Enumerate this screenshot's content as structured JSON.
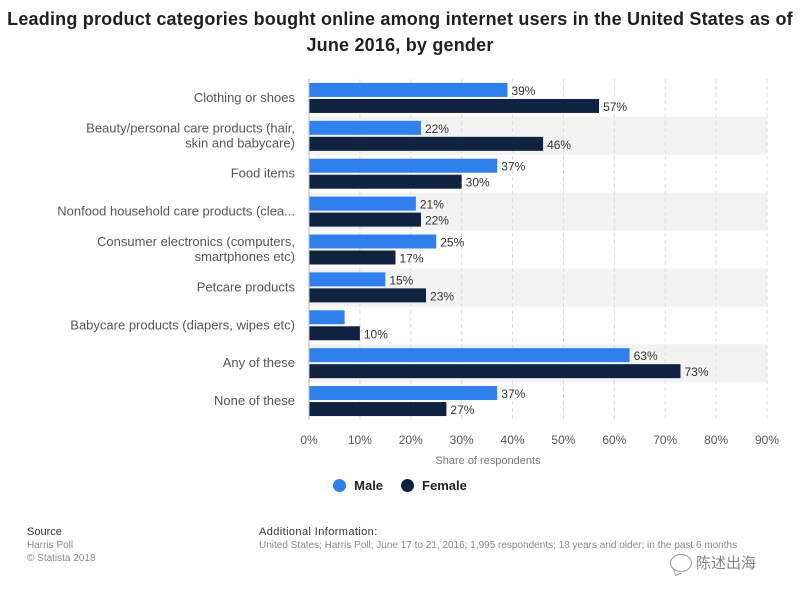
{
  "title": "Leading product categories bought online among internet users in the United States as of June 2016, by gender",
  "colors": {
    "male": "#2f80ed",
    "female": "#0f2340",
    "grid": "#dcdcdc",
    "band": "#f2f2f2"
  },
  "chart_data": {
    "type": "bar",
    "orientation": "horizontal",
    "title": "Leading product categories bought online among internet users in the United States as of June 2016, by gender",
    "categories": [
      [
        "Clothing or shoes"
      ],
      [
        "Beauty/personal care products (hair,",
        "skin and babycare)"
      ],
      [
        "Food items"
      ],
      [
        "Nonfood household care products (clea..."
      ],
      [
        "Consumer electronics (computers,",
        "smartphones etc)"
      ],
      [
        "Petcare products"
      ],
      [
        "Babycare products (diapers, wipes etc)"
      ],
      [
        "Any of these"
      ],
      [
        "None of these"
      ]
    ],
    "series": [
      {
        "name": "Male",
        "values": [
          39,
          22,
          37,
          21,
          25,
          15,
          7,
          63,
          37
        ],
        "labels": [
          "39%",
          "22%",
          "37%",
          "21%",
          "25%",
          "15%",
          "",
          "63%",
          "37%"
        ]
      },
      {
        "name": "Female",
        "values": [
          57,
          46,
          30,
          22,
          17,
          23,
          10,
          73,
          27
        ],
        "labels": [
          "57%",
          "46%",
          "30%",
          "22%",
          "17%",
          "23%",
          "10%",
          "73%",
          "27%"
        ]
      }
    ],
    "xlim": [
      0,
      90
    ],
    "xticks": [
      "0%",
      "10%",
      "20%",
      "30%",
      "40%",
      "50%",
      "60%",
      "70%",
      "80%",
      "90%"
    ],
    "xlabel": "Share of respondents",
    "ylabel": "",
    "grid": true,
    "legend_position": "bottom"
  },
  "legend": {
    "male": "Male",
    "female": "Female"
  },
  "source": {
    "title": "Source",
    "line1": "Harris Poll",
    "line2": "© Statista 2018"
  },
  "additional_info": {
    "title": "Additional Information:",
    "text": "United States; Harris Poll; June 17 to 21, 2016; 1,995 respondents; 18 years and older; in the past 6 months"
  },
  "watermark": "陈述出海"
}
